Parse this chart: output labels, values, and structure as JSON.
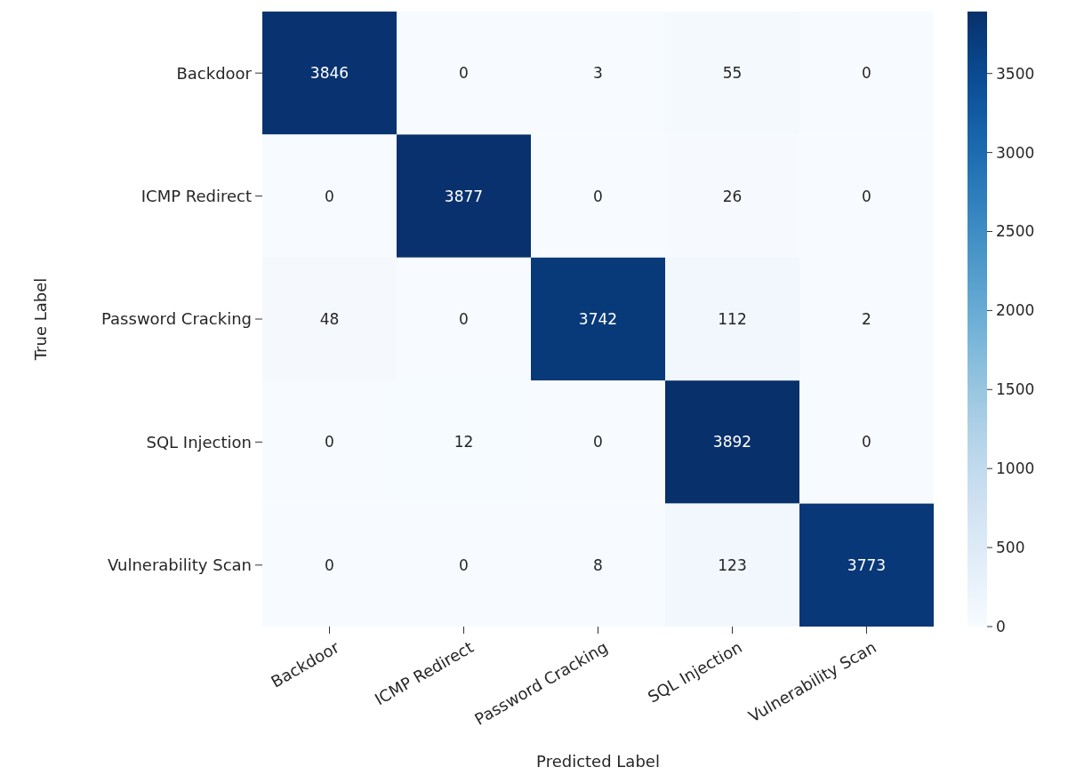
{
  "chart_data": {
    "type": "heatmap",
    "xlabel": "Predicted Label",
    "ylabel": "True Label",
    "categories": [
      "Backdoor",
      "ICMP Redirect",
      "Password Cracking",
      "SQL Injection",
      "Vulnerability Scan"
    ],
    "y_categories": [
      "Backdoor",
      "ICMP Redirect",
      "Password Cracking",
      "SQL Injection",
      "Vulnerability Scan"
    ],
    "cells": [
      [
        3846,
        0,
        3,
        55,
        0
      ],
      [
        0,
        3877,
        0,
        26,
        0
      ],
      [
        48,
        0,
        3742,
        112,
        2
      ],
      [
        0,
        12,
        0,
        3892,
        0
      ],
      [
        0,
        0,
        8,
        123,
        3773
      ]
    ],
    "clim": [
      0,
      3892
    ],
    "cticks": [
      0,
      500,
      1000,
      1500,
      2000,
      2500,
      3000,
      3500
    ],
    "data_labels": true
  }
}
